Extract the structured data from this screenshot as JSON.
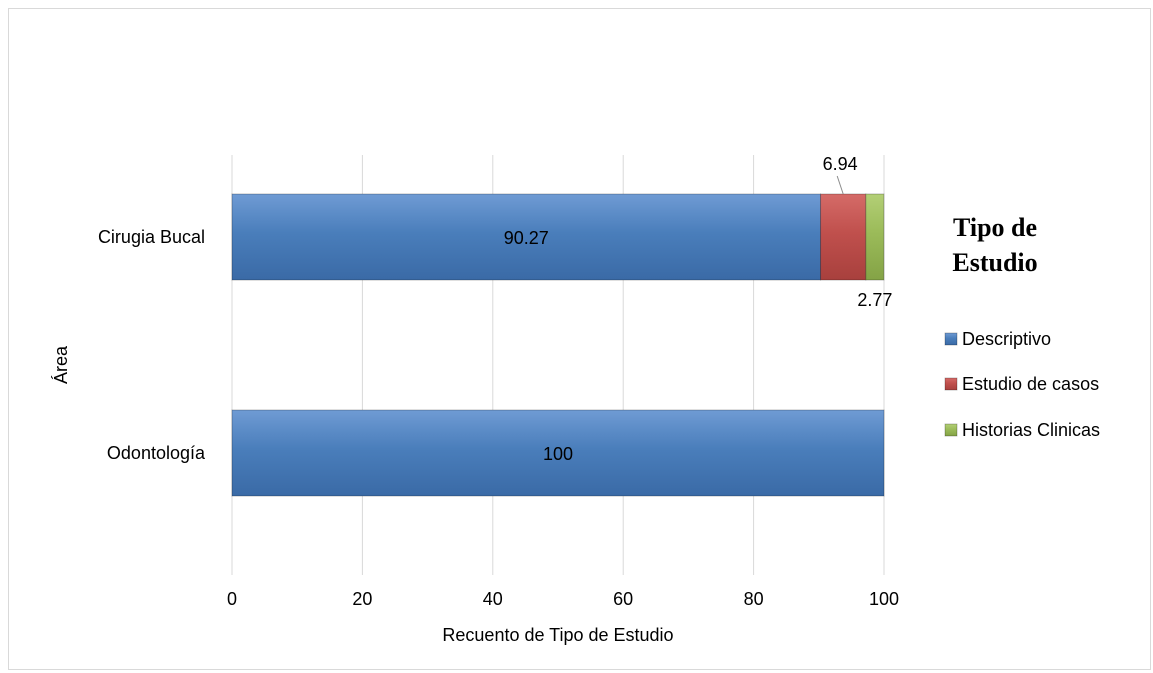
{
  "chart_data": {
    "type": "bar",
    "orientation": "horizontal",
    "stacked": true,
    "categories": [
      "Cirugia Bucal",
      "Odontología"
    ],
    "series": [
      {
        "name": "Descriptivo",
        "values": [
          90.27,
          100
        ],
        "labels": [
          "90.27",
          "100"
        ],
        "color": "#4a7ebb"
      },
      {
        "name": "Estudio de casos",
        "values": [
          6.94,
          0
        ],
        "labels": [
          "6.94",
          ""
        ],
        "color": "#c0504d"
      },
      {
        "name": "Historias Clinicas",
        "values": [
          2.77,
          0
        ],
        "labels": [
          "2.77",
          ""
        ],
        "color": "#9bbb59"
      }
    ],
    "xlabel": "Recuento de Tipo de Estudio",
    "ylabel": "Área",
    "xlim": [
      0,
      100
    ],
    "xticks": [
      0,
      20,
      40,
      60,
      80,
      100
    ],
    "xtick_labels": [
      "0",
      "20",
      "40",
      "60",
      "80",
      "100"
    ],
    "grid": true,
    "legend": {
      "title": "Tipo de Estudio",
      "title_lines": [
        "Tipo de",
        "Estudio"
      ],
      "position": "right"
    }
  }
}
